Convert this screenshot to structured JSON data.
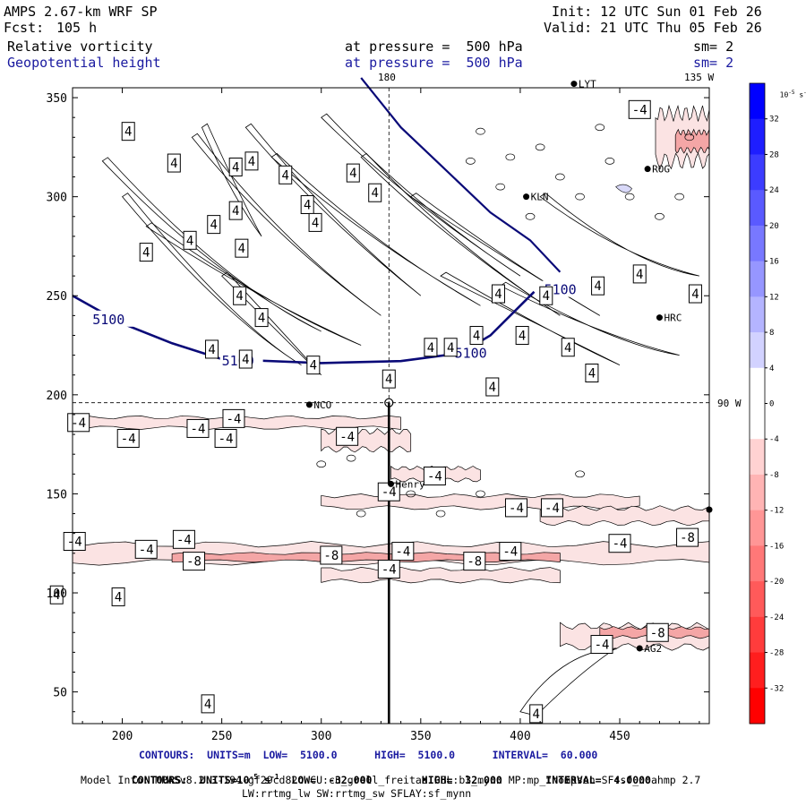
{
  "header": {
    "model": "AMPS 2.67-km WRF SP",
    "fcst_label": "Fcst:",
    "fcst_value": "105 h",
    "init": "Init: 12 UTC Sun 01 Feb 26",
    "valid": "Valid: 21 UTC Thu 05 Feb 26",
    "field1": "Relative vorticity",
    "field1_level": "at pressure =  500 hPa",
    "field1_sm": "sm= 2",
    "field2": "Geopotential height",
    "field2_level": "at pressure =  500 hPa",
    "field2_sm": "sm= 2",
    "lon_top": "180",
    "lon_corner": "135 W",
    "lon_right": "90 W"
  },
  "footer": {
    "contour1": "CONTOURS:  UNITS=m  LOW=  5100.0      HIGH=  5100.0      INTERVAL=  60.000",
    "contour2_pre": "CONTOURS:  UNITS=10",
    "contour2_sup": "-5",
    "contour2_post": " s",
    "contour2_sup2": "-1",
    "contour2_rest": "  LOW=  -32.000        HIGH=  32.000       INTERVAL=  4.0000",
    "model_info": "Model Info: MPASv8.2.3-194-gf29cd82c CU:cu_grell_freitas PBL:bl_mynn MP:mp_thompson SF:sf_noahmp 2.7",
    "model_info2": "LW:rrtmg_lw SW:rrtmg_sw SFLAY:sf_mynn"
  },
  "colors": {
    "height_contour": "#0a0a78",
    "vort_contour": "#000000",
    "neg_fill_light": "#fbe3e3",
    "neg_fill_mid": "#f4a6a6",
    "pos_fill": "#d8d8f8"
  },
  "chart_data": {
    "type": "contour-map",
    "x_ticks": [
      200,
      250,
      300,
      350,
      400,
      450
    ],
    "y_ticks": [
      50,
      100,
      150,
      200,
      250,
      300,
      350
    ],
    "xlim": [
      175,
      495
    ],
    "ylim": [
      34,
      355
    ],
    "guide_x": 334,
    "guide_y": 196,
    "geopotential_height_5100": [
      [
        175,
        250
      ],
      [
        200,
        236
      ],
      [
        225,
        226
      ],
      [
        250,
        218
      ],
      [
        300,
        216
      ],
      [
        340,
        217
      ],
      [
        370,
        221
      ],
      [
        385,
        230
      ],
      [
        400,
        245
      ],
      [
        407,
        252
      ]
    ],
    "geopotential_height_5100_north": [
      [
        320,
        360
      ],
      [
        340,
        335
      ],
      [
        360,
        316
      ],
      [
        385,
        292
      ],
      [
        405,
        278
      ],
      [
        420,
        262
      ]
    ],
    "height_labels": [
      {
        "text": "5100",
        "x": 185,
        "y": 238
      },
      {
        "text": "5100",
        "x": 250,
        "y": 217
      },
      {
        "text": "5100",
        "x": 367,
        "y": 221
      },
      {
        "text": "5100",
        "x": 412,
        "y": 253
      }
    ],
    "vorticity_labels": [
      {
        "text": "4",
        "x": 226,
        "y": 317
      },
      {
        "text": "4",
        "x": 203,
        "y": 333
      },
      {
        "text": "4",
        "x": 257,
        "y": 315
      },
      {
        "text": "4",
        "x": 265,
        "y": 318
      },
      {
        "text": "4",
        "x": 282,
        "y": 311
      },
      {
        "text": "4",
        "x": 257,
        "y": 293
      },
      {
        "text": "4",
        "x": 246,
        "y": 286
      },
      {
        "text": "4",
        "x": 234,
        "y": 278
      },
      {
        "text": "4",
        "x": 212,
        "y": 272
      },
      {
        "text": "4",
        "x": 316,
        "y": 312
      },
      {
        "text": "4",
        "x": 327,
        "y": 302
      },
      {
        "text": "4",
        "x": 293,
        "y": 296
      },
      {
        "text": "4",
        "x": 260,
        "y": 274
      },
      {
        "text": "4",
        "x": 297,
        "y": 287
      },
      {
        "text": "4",
        "x": 259,
        "y": 250
      },
      {
        "text": "4",
        "x": 270,
        "y": 239
      },
      {
        "text": "4",
        "x": 245,
        "y": 223
      },
      {
        "text": "4",
        "x": 296,
        "y": 215
      },
      {
        "text": "4",
        "x": 262,
        "y": 218
      },
      {
        "text": "4",
        "x": 355,
        "y": 224
      },
      {
        "text": "4",
        "x": 365,
        "y": 224
      },
      {
        "text": "4",
        "x": 389,
        "y": 251
      },
      {
        "text": "4",
        "x": 378,
        "y": 230
      },
      {
        "text": "4",
        "x": 401,
        "y": 230
      },
      {
        "text": "4",
        "x": 413,
        "y": 250
      },
      {
        "text": "4",
        "x": 424,
        "y": 224
      },
      {
        "text": "4",
        "x": 439,
        "y": 255
      },
      {
        "text": "4",
        "x": 460,
        "y": 261
      },
      {
        "text": "4",
        "x": 488,
        "y": 251
      },
      {
        "text": "4",
        "x": 436,
        "y": 211
      },
      {
        "text": "4",
        "x": 386,
        "y": 204
      },
      {
        "text": "4",
        "x": 334,
        "y": 208
      },
      {
        "text": "4",
        "x": 243,
        "y": 44
      },
      {
        "text": "4",
        "x": 408,
        "y": 39
      },
      {
        "text": "4",
        "x": 167,
        "y": 99
      },
      {
        "text": "4",
        "x": 198,
        "y": 98
      },
      {
        "text": "-4",
        "x": 178,
        "y": 186
      },
      {
        "text": "-4",
        "x": 203,
        "y": 178
      },
      {
        "text": "-4",
        "x": 238,
        "y": 183
      },
      {
        "text": "-4",
        "x": 256,
        "y": 188
      },
      {
        "text": "-4",
        "x": 252,
        "y": 178
      },
      {
        "text": "-4",
        "x": 313,
        "y": 179
      },
      {
        "text": "-4",
        "x": 357,
        "y": 159
      },
      {
        "text": "-4",
        "x": 334,
        "y": 151
      },
      {
        "text": "-4",
        "x": 398,
        "y": 143
      },
      {
        "text": "-4",
        "x": 416,
        "y": 143
      },
      {
        "text": "-4",
        "x": 176,
        "y": 126
      },
      {
        "text": "-4",
        "x": 212,
        "y": 122
      },
      {
        "text": "-4",
        "x": 231,
        "y": 127
      },
      {
        "text": "-4",
        "x": 341,
        "y": 121
      },
      {
        "text": "-4",
        "x": 395,
        "y": 121
      },
      {
        "text": "-4",
        "x": 450,
        "y": 125
      },
      {
        "text": "-4",
        "x": 334,
        "y": 112
      },
      {
        "text": "-8",
        "x": 236,
        "y": 116
      },
      {
        "text": "-8",
        "x": 305,
        "y": 119
      },
      {
        "text": "-8",
        "x": 377,
        "y": 116
      },
      {
        "text": "-8",
        "x": 484,
        "y": 128
      },
      {
        "text": "-8",
        "x": 469,
        "y": 80
      },
      {
        "text": "-4",
        "x": 441,
        "y": 74
      },
      {
        "text": "-4",
        "x": 460,
        "y": 344
      }
    ],
    "stations": [
      {
        "name": "LYT",
        "x": 427,
        "y": 357
      },
      {
        "name": "ROG",
        "x": 464,
        "y": 314
      },
      {
        "name": "KLN",
        "x": 403,
        "y": 300
      },
      {
        "name": "HRC",
        "x": 470,
        "y": 239
      },
      {
        "name": "NCO",
        "x": 294,
        "y": 195
      },
      {
        "name": "Henry",
        "x": 335,
        "y": 155
      },
      {
        "name": "AG2",
        "x": 460,
        "y": 72
      }
    ],
    "colorbar": {
      "unit_label": "10",
      "unit_sup": "-5",
      "unit_rest": " s",
      "unit_sup2": "-1",
      "levels": [
        32,
        28,
        24,
        20,
        16,
        12,
        8,
        4,
        0,
        -4,
        -8,
        -12,
        -16,
        -20,
        -24,
        -28,
        -32
      ]
    }
  }
}
